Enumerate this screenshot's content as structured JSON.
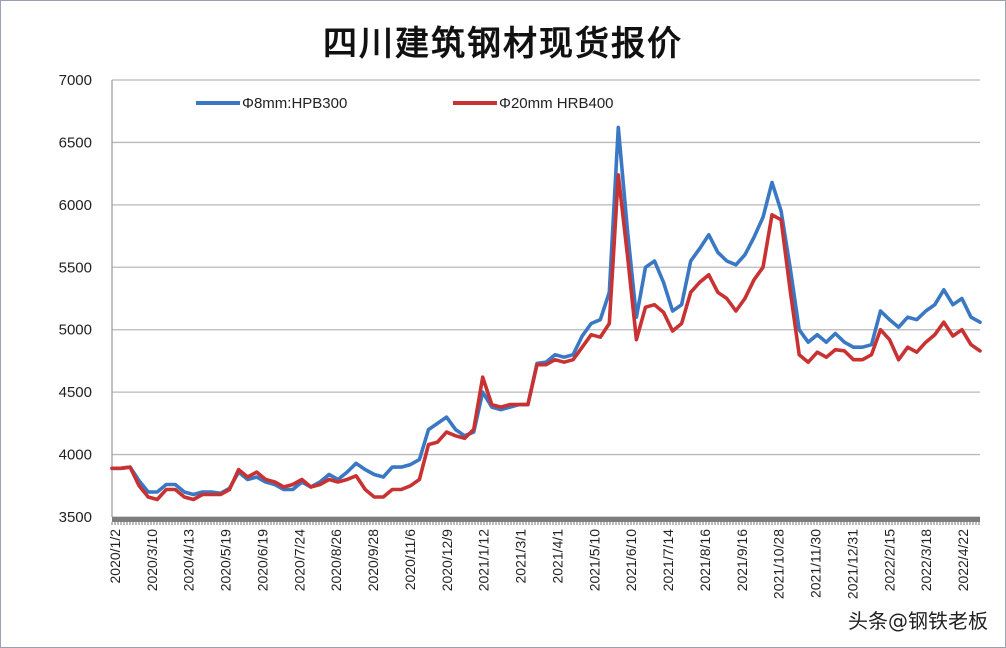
{
  "chart_data": {
    "type": "line",
    "title": "四川建筑钢材现货报价",
    "ylim": [
      3500,
      7000
    ],
    "yticks": [
      3500,
      4000,
      4500,
      5000,
      5500,
      6000,
      6500,
      7000
    ],
    "ytick_labels": [
      "3500",
      "4000",
      "4500",
      "5000",
      "5500",
      "6000",
      "6500",
      "7000"
    ],
    "grid": true,
    "legend_position": "top",
    "x_tick_labels": [
      "2020/1/2",
      "2020/3/10",
      "2020/4/13",
      "2020/5/19",
      "2020/6/19",
      "2020/7/24",
      "2020/8/26",
      "2020/9/28",
      "2020/11/6",
      "2020/12/9",
      "2021/1/12",
      "2021/3/1",
      "2021/4/1",
      "2021/5/10",
      "2021/6/10",
      "2021/7/14",
      "2021/8/16",
      "2021/9/16",
      "2021/10/28",
      "2021/11/30",
      "2021/12/31",
      "2022/2/15",
      "2022/3/18",
      "2022/4/22"
    ],
    "series": [
      {
        "name": "Φ8mm:HPB300",
        "color": "#3a78c4",
        "values": [
          [
            0,
            3890
          ],
          [
            1,
            3890
          ],
          [
            2,
            3900
          ],
          [
            3,
            3790
          ],
          [
            4,
            3700
          ],
          [
            5,
            3700
          ],
          [
            6,
            3760
          ],
          [
            7,
            3760
          ],
          [
            8,
            3700
          ],
          [
            9,
            3680
          ],
          [
            10,
            3700
          ],
          [
            11,
            3700
          ],
          [
            12,
            3690
          ],
          [
            13,
            3730
          ],
          [
            14,
            3860
          ],
          [
            15,
            3800
          ],
          [
            16,
            3820
          ],
          [
            17,
            3780
          ],
          [
            18,
            3760
          ],
          [
            19,
            3720
          ],
          [
            20,
            3720
          ],
          [
            21,
            3780
          ],
          [
            22,
            3740
          ],
          [
            23,
            3780
          ],
          [
            24,
            3840
          ],
          [
            25,
            3800
          ],
          [
            26,
            3860
          ],
          [
            27,
            3930
          ],
          [
            28,
            3880
          ],
          [
            29,
            3840
          ],
          [
            30,
            3820
          ],
          [
            31,
            3900
          ],
          [
            32,
            3900
          ],
          [
            33,
            3920
          ],
          [
            34,
            3960
          ],
          [
            35,
            4200
          ],
          [
            36,
            4250
          ],
          [
            37,
            4300
          ],
          [
            38,
            4200
          ],
          [
            39,
            4150
          ],
          [
            40,
            4180
          ],
          [
            41,
            4500
          ],
          [
            42,
            4380
          ],
          [
            43,
            4360
          ],
          [
            44,
            4380
          ],
          [
            45,
            4400
          ],
          [
            46,
            4400
          ],
          [
            47,
            4730
          ],
          [
            48,
            4740
          ],
          [
            49,
            4800
          ],
          [
            50,
            4780
          ],
          [
            51,
            4800
          ],
          [
            52,
            4950
          ],
          [
            53,
            5050
          ],
          [
            54,
            5080
          ],
          [
            55,
            5300
          ],
          [
            56,
            6620
          ],
          [
            57,
            5800
          ],
          [
            58,
            5100
          ],
          [
            59,
            5500
          ],
          [
            60,
            5550
          ],
          [
            61,
            5380
          ],
          [
            62,
            5150
          ],
          [
            63,
            5200
          ],
          [
            64,
            5550
          ],
          [
            65,
            5650
          ],
          [
            66,
            5760
          ],
          [
            67,
            5620
          ],
          [
            68,
            5550
          ],
          [
            69,
            5520
          ],
          [
            70,
            5600
          ],
          [
            71,
            5740
          ],
          [
            72,
            5900
          ],
          [
            73,
            6180
          ],
          [
            74,
            5950
          ],
          [
            75,
            5500
          ],
          [
            76,
            5000
          ],
          [
            77,
            4900
          ],
          [
            78,
            4960
          ],
          [
            79,
            4900
          ],
          [
            80,
            4970
          ],
          [
            81,
            4900
          ],
          [
            82,
            4860
          ],
          [
            83,
            4860
          ],
          [
            84,
            4880
          ],
          [
            85,
            5150
          ],
          [
            86,
            5080
          ],
          [
            87,
            5020
          ],
          [
            88,
            5100
          ],
          [
            89,
            5080
          ],
          [
            90,
            5150
          ],
          [
            91,
            5200
          ],
          [
            92,
            5320
          ],
          [
            93,
            5200
          ],
          [
            94,
            5250
          ],
          [
            95,
            5100
          ],
          [
            96,
            5060
          ]
        ]
      },
      {
        "name": "Φ20mm HRB400",
        "color": "#c83232",
        "values": [
          [
            0,
            3890
          ],
          [
            1,
            3890
          ],
          [
            2,
            3900
          ],
          [
            3,
            3750
          ],
          [
            4,
            3660
          ],
          [
            5,
            3640
          ],
          [
            6,
            3720
          ],
          [
            7,
            3720
          ],
          [
            8,
            3660
          ],
          [
            9,
            3640
          ],
          [
            10,
            3680
          ],
          [
            11,
            3680
          ],
          [
            12,
            3680
          ],
          [
            13,
            3720
          ],
          [
            14,
            3880
          ],
          [
            15,
            3820
          ],
          [
            16,
            3860
          ],
          [
            17,
            3800
          ],
          [
            18,
            3780
          ],
          [
            19,
            3740
          ],
          [
            20,
            3760
          ],
          [
            21,
            3800
          ],
          [
            22,
            3740
          ],
          [
            23,
            3760
          ],
          [
            24,
            3800
          ],
          [
            25,
            3780
          ],
          [
            26,
            3800
          ],
          [
            27,
            3830
          ],
          [
            28,
            3720
          ],
          [
            29,
            3660
          ],
          [
            30,
            3660
          ],
          [
            31,
            3720
          ],
          [
            32,
            3720
          ],
          [
            33,
            3750
          ],
          [
            34,
            3800
          ],
          [
            35,
            4080
          ],
          [
            36,
            4100
          ],
          [
            37,
            4180
          ],
          [
            38,
            4150
          ],
          [
            39,
            4130
          ],
          [
            40,
            4200
          ],
          [
            41,
            4620
          ],
          [
            42,
            4400
          ],
          [
            43,
            4380
          ],
          [
            44,
            4400
          ],
          [
            45,
            4400
          ],
          [
            46,
            4400
          ],
          [
            47,
            4720
          ],
          [
            48,
            4720
          ],
          [
            49,
            4760
          ],
          [
            50,
            4740
          ],
          [
            51,
            4760
          ],
          [
            52,
            4860
          ],
          [
            53,
            4960
          ],
          [
            54,
            4940
          ],
          [
            55,
            5050
          ],
          [
            56,
            6240
          ],
          [
            57,
            5600
          ],
          [
            58,
            4920
          ],
          [
            59,
            5180
          ],
          [
            60,
            5200
          ],
          [
            61,
            5140
          ],
          [
            62,
            4990
          ],
          [
            63,
            5050
          ],
          [
            64,
            5300
          ],
          [
            65,
            5380
          ],
          [
            66,
            5440
          ],
          [
            67,
            5300
          ],
          [
            68,
            5250
          ],
          [
            69,
            5150
          ],
          [
            70,
            5250
          ],
          [
            71,
            5400
          ],
          [
            72,
            5500
          ],
          [
            73,
            5920
          ],
          [
            74,
            5880
          ],
          [
            75,
            5320
          ],
          [
            76,
            4800
          ],
          [
            77,
            4740
          ],
          [
            78,
            4820
          ],
          [
            79,
            4780
          ],
          [
            80,
            4840
          ],
          [
            81,
            4830
          ],
          [
            82,
            4760
          ],
          [
            83,
            4760
          ],
          [
            84,
            4800
          ],
          [
            85,
            5000
          ],
          [
            86,
            4920
          ],
          [
            87,
            4760
          ],
          [
            88,
            4860
          ],
          [
            89,
            4820
          ],
          [
            90,
            4900
          ],
          [
            91,
            4960
          ],
          [
            92,
            5060
          ],
          [
            93,
            4950
          ],
          [
            94,
            5000
          ],
          [
            95,
            4880
          ],
          [
            96,
            4830
          ]
        ]
      }
    ]
  },
  "watermark": "头条@钢铁老板"
}
